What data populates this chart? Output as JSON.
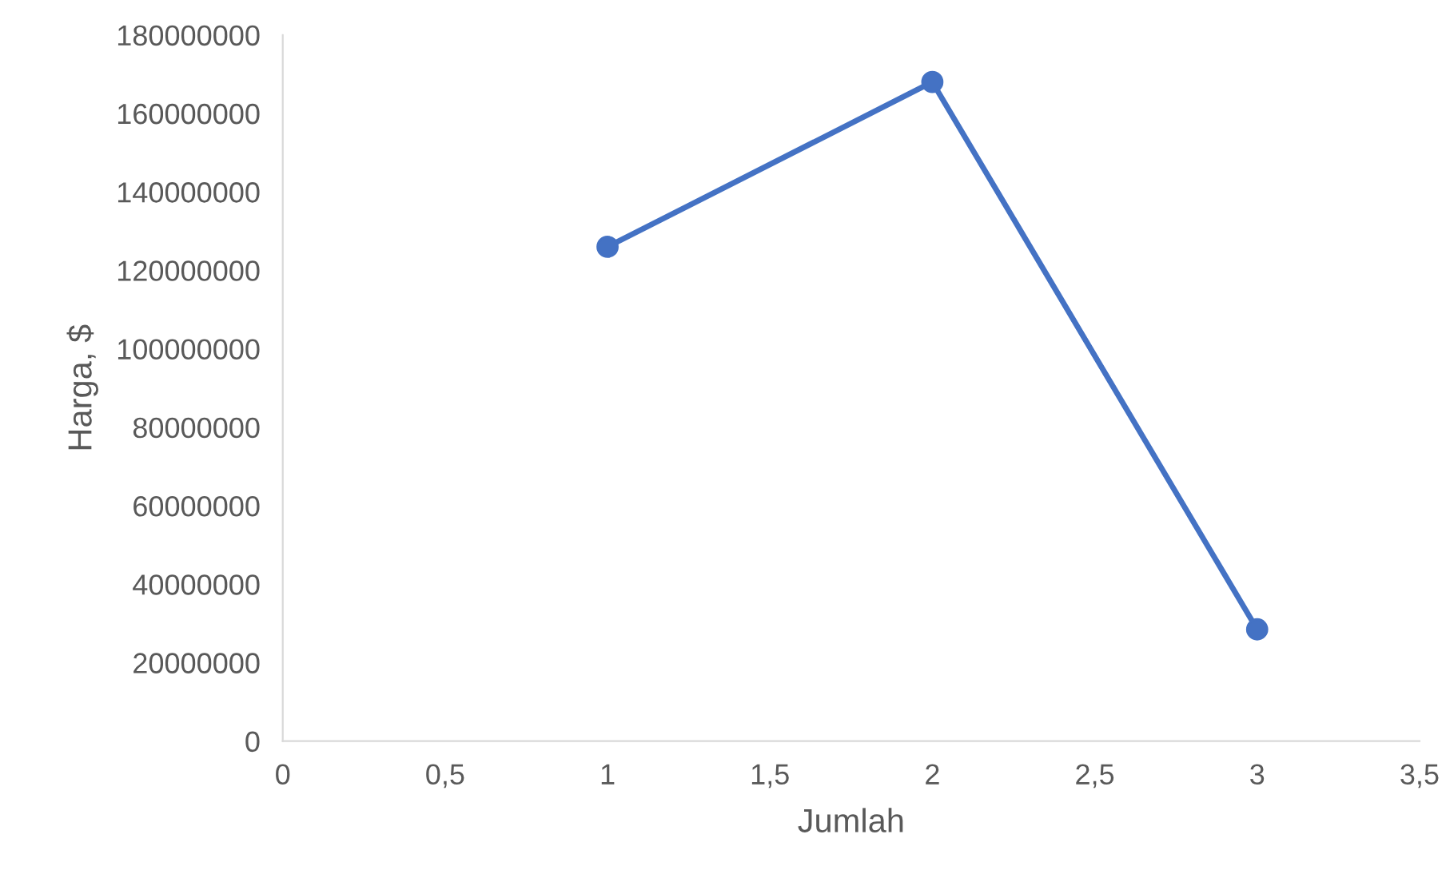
{
  "chart_data": {
    "type": "line",
    "xlabel": "Jumlah",
    "ylabel": "Harga, $",
    "marker": "circle",
    "line_style": "solid",
    "grid": false,
    "legend": false,
    "x": [
      1,
      2,
      3
    ],
    "series": [
      {
        "color": "#4472c4",
        "values": [
          126000000,
          168000000,
          28500000
        ]
      }
    ],
    "xlim": [
      0,
      3.5
    ],
    "xticks": [
      0,
      {
        "value": 0.5,
        "label": "0,5"
      },
      1,
      {
        "value": 1.5,
        "label": "1,5"
      },
      2,
      {
        "value": 2.5,
        "label": "2,5"
      },
      3,
      {
        "value": 3.5,
        "label": "3,5"
      }
    ],
    "ylim": [
      0,
      180000000
    ],
    "yticks": [
      0,
      20000000,
      40000000,
      60000000,
      80000000,
      100000000,
      120000000,
      140000000,
      160000000,
      180000000
    ]
  }
}
